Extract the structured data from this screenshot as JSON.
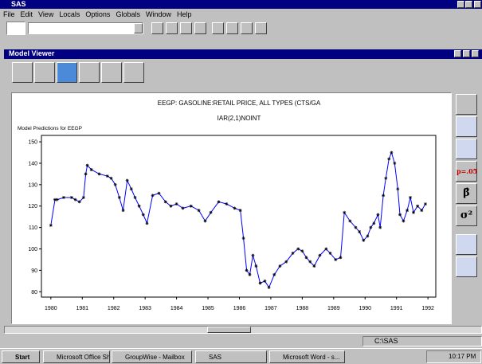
{
  "window": {
    "title": "SAS",
    "menu": [
      "File",
      "Edit",
      "View",
      "Locals",
      "Options",
      "Globals",
      "Window",
      "Help"
    ]
  },
  "viewer": {
    "title": "Model Viewer",
    "tools": [
      "p=.05",
      "β̂",
      "σ²"
    ]
  },
  "status": "C:\\SAS",
  "taskbar": {
    "start": "Start",
    "tasks": [
      "Microsoft Office Sh...",
      "GroupWise - Mailbox",
      "SAS",
      "Microsoft Word - s..."
    ],
    "clock": "10:17 PM"
  },
  "chart_data": {
    "type": "line",
    "title": "EEGP: GASOLINE:RETAIL PRICE, ALL TYPES (CTS/GA",
    "subtitle": "IAR(2,1)NOINT",
    "ylabel": "Model Predictions for EEGP",
    "x": [
      1980.0,
      1980.13,
      1980.2,
      1980.41,
      1980.66,
      1980.78,
      1980.91,
      1981.04,
      1981.11,
      1981.16,
      1981.29,
      1981.54,
      1981.8,
      1981.92,
      1982.05,
      1982.18,
      1982.3,
      1982.43,
      1982.56,
      1982.68,
      1982.81,
      1982.94,
      1983.06,
      1983.24,
      1983.44,
      1983.65,
      1983.82,
      1984.0,
      1984.2,
      1984.46,
      1984.71,
      1984.91,
      1985.09,
      1985.34,
      1985.59,
      1985.85,
      1986.03,
      1986.13,
      1986.23,
      1986.33,
      1986.43,
      1986.53,
      1986.66,
      1986.81,
      1986.94,
      1987.11,
      1987.29,
      1987.49,
      1987.7,
      1987.87,
      1988.0,
      1988.13,
      1988.25,
      1988.38,
      1988.56,
      1988.76,
      1988.89,
      1989.06,
      1989.22,
      1989.34,
      1989.52,
      1989.7,
      1989.82,
      1989.95,
      1990.08,
      1990.18,
      1990.28,
      1990.41,
      1990.48,
      1990.58,
      1990.66,
      1990.76,
      1990.84,
      1990.94,
      1991.04,
      1991.11,
      1991.22,
      1991.34,
      1991.44,
      1991.54,
      1991.67,
      1991.8,
      1991.92
    ],
    "series": [
      {
        "color": "#0000ff",
        "marker_color": "#000000",
        "values": [
          111,
          123,
          123,
          124,
          124,
          123,
          122,
          124,
          135,
          139,
          137,
          135,
          134,
          133,
          130,
          124,
          118,
          132,
          128,
          124,
          120,
          116,
          112,
          125,
          126,
          122,
          120,
          121,
          119,
          120,
          118,
          113,
          117,
          122,
          121,
          119,
          118,
          105,
          90,
          88,
          97,
          92,
          84,
          85,
          82,
          88,
          92,
          94,
          98,
          100,
          99,
          96,
          94,
          92,
          97,
          100,
          98,
          95,
          96,
          117,
          113,
          110,
          108,
          104,
          106,
          110,
          112,
          116,
          110,
          125,
          133,
          142,
          145,
          140,
          128,
          116,
          113,
          118,
          124,
          117,
          120,
          118,
          121
        ]
      }
    ],
    "xlim": [
      1979.7,
      1992.25
    ],
    "ylim": [
      77.5,
      153
    ],
    "xticks": [
      1980,
      1981,
      1982,
      1983,
      1984,
      1985,
      1986,
      1987,
      1988,
      1989,
      1990,
      1991,
      1992
    ],
    "yticks": [
      80,
      90,
      100,
      110,
      120,
      130,
      140,
      150
    ],
    "grid": false
  }
}
